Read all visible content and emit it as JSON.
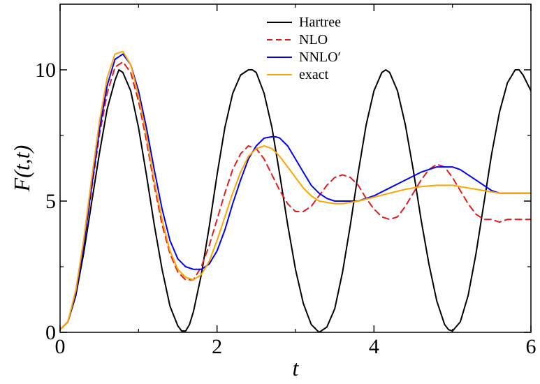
{
  "chart_data": {
    "type": "line",
    "title": "",
    "xlabel": "t",
    "ylabel": "F(t,t)",
    "xlim": [
      0,
      6
    ],
    "ylim": [
      0,
      12.5
    ],
    "xticks": [
      0,
      2,
      4,
      6
    ],
    "xtick_labels": [
      "0",
      "2",
      "4",
      "6"
    ],
    "yticks": [
      0,
      5,
      10
    ],
    "ytick_labels": [
      "0",
      "5",
      "10"
    ],
    "grid": false,
    "legend_position": "top-center",
    "series": [
      {
        "name": "Hartree",
        "color": "#000000",
        "dash": "solid",
        "x": [
          0,
          0.1,
          0.2,
          0.3,
          0.4,
          0.5,
          0.6,
          0.7,
          0.75,
          0.8,
          0.9,
          1.0,
          1.1,
          1.2,
          1.3,
          1.4,
          1.5,
          1.55,
          1.6,
          1.65,
          1.7,
          1.8,
          1.9,
          2.0,
          2.1,
          2.2,
          2.3,
          2.4,
          2.45,
          2.5,
          2.6,
          2.7,
          2.8,
          2.9,
          3.0,
          3.1,
          3.2,
          3.3,
          3.4,
          3.5,
          3.6,
          3.7,
          3.8,
          3.9,
          4.0,
          4.1,
          4.15,
          4.2,
          4.3,
          4.4,
          4.5,
          4.6,
          4.7,
          4.8,
          4.9,
          4.95,
          5.0,
          5.1,
          5.2,
          5.3,
          5.4,
          5.5,
          5.6,
          5.7,
          5.8,
          5.85,
          5.9,
          6.0
        ],
        "y": [
          0.1,
          0.4,
          1.4,
          3.0,
          4.9,
          6.8,
          8.5,
          9.6,
          10.0,
          9.9,
          9.2,
          7.8,
          6.0,
          4.1,
          2.4,
          1.0,
          0.25,
          0.05,
          0.05,
          0.3,
          0.8,
          2.2,
          4.0,
          6.0,
          7.8,
          9.1,
          9.8,
          10.0,
          10.0,
          9.9,
          9.1,
          7.8,
          6.0,
          4.1,
          2.4,
          1.1,
          0.3,
          0.0,
          0.2,
          0.9,
          2.3,
          4.1,
          6.1,
          7.9,
          9.2,
          9.9,
          10.0,
          9.9,
          9.2,
          7.9,
          6.2,
          4.3,
          2.6,
          1.2,
          0.3,
          0.1,
          0.05,
          0.4,
          1.4,
          3.0,
          4.9,
          6.8,
          8.4,
          9.5,
          10.0,
          10.0,
          9.8,
          9.2
        ]
      },
      {
        "name": "NLO",
        "color": "#e41a1c",
        "dash": "dashed",
        "x": [
          0,
          0.1,
          0.2,
          0.3,
          0.4,
          0.5,
          0.6,
          0.7,
          0.8,
          0.9,
          1.0,
          1.1,
          1.2,
          1.3,
          1.4,
          1.5,
          1.6,
          1.7,
          1.8,
          1.9,
          2.0,
          2.1,
          2.2,
          2.3,
          2.4,
          2.5,
          2.6,
          2.7,
          2.8,
          2.9,
          3.0,
          3.1,
          3.2,
          3.3,
          3.4,
          3.5,
          3.6,
          3.7,
          3.8,
          3.9,
          4.0,
          4.1,
          4.2,
          4.3,
          4.4,
          4.5,
          4.6,
          4.7,
          4.8,
          4.9,
          5.0,
          5.1,
          5.2,
          5.3,
          5.4,
          5.5,
          5.6,
          5.7,
          5.8,
          5.9,
          6.0
        ],
        "y": [
          0.1,
          0.4,
          1.5,
          3.3,
          5.4,
          7.5,
          9.1,
          10.1,
          10.3,
          9.9,
          8.8,
          7.3,
          5.6,
          4.1,
          3.0,
          2.3,
          2.0,
          2.0,
          2.5,
          3.3,
          4.3,
          5.3,
          6.2,
          6.8,
          7.1,
          7.0,
          6.6,
          6.0,
          5.4,
          4.9,
          4.6,
          4.6,
          4.8,
          5.2,
          5.6,
          5.9,
          6.0,
          5.9,
          5.6,
          5.1,
          4.7,
          4.4,
          4.3,
          4.4,
          4.8,
          5.3,
          5.8,
          6.2,
          6.4,
          6.3,
          5.9,
          5.4,
          4.9,
          4.5,
          4.3,
          4.3,
          4.2,
          4.3,
          4.3,
          4.3,
          4.3
        ]
      },
      {
        "name": "NNLO′",
        "color": "#0000ff",
        "dash": "solid",
        "x": [
          0,
          0.1,
          0.2,
          0.3,
          0.4,
          0.5,
          0.6,
          0.7,
          0.8,
          0.9,
          1.0,
          1.1,
          1.2,
          1.3,
          1.4,
          1.5,
          1.6,
          1.7,
          1.8,
          1.9,
          2.0,
          2.1,
          2.2,
          2.3,
          2.4,
          2.5,
          2.6,
          2.7,
          2.75,
          2.8,
          2.9,
          3.0,
          3.1,
          3.2,
          3.3,
          3.4,
          3.5,
          3.6,
          3.7,
          3.8,
          3.9,
          4.0,
          4.2,
          4.4,
          4.6,
          4.8,
          5.0,
          5.1,
          5.2,
          5.3,
          5.4,
          5.5,
          5.6,
          5.7,
          5.8,
          5.9,
          6.0
        ],
        "y": [
          0.1,
          0.4,
          1.5,
          3.3,
          5.5,
          7.7,
          9.4,
          10.4,
          10.6,
          10.2,
          9.2,
          7.8,
          6.2,
          4.7,
          3.5,
          2.8,
          2.5,
          2.4,
          2.4,
          2.6,
          3.1,
          3.9,
          4.9,
          5.8,
          6.6,
          7.1,
          7.4,
          7.45,
          7.45,
          7.4,
          7.1,
          6.6,
          6.1,
          5.6,
          5.3,
          5.1,
          5.0,
          5.0,
          5.0,
          5.0,
          5.1,
          5.2,
          5.5,
          5.8,
          6.1,
          6.3,
          6.3,
          6.2,
          6.0,
          5.8,
          5.6,
          5.4,
          5.3,
          5.3,
          5.3,
          5.3,
          5.3
        ]
      },
      {
        "name": "exact",
        "color": "#ffa500",
        "dash": "solid",
        "x": [
          0,
          0.1,
          0.2,
          0.3,
          0.4,
          0.5,
          0.6,
          0.7,
          0.8,
          0.9,
          1.0,
          1.1,
          1.2,
          1.3,
          1.4,
          1.5,
          1.6,
          1.7,
          1.8,
          1.9,
          2.0,
          2.1,
          2.2,
          2.3,
          2.4,
          2.5,
          2.6,
          2.7,
          2.8,
          2.9,
          3.0,
          3.1,
          3.2,
          3.3,
          3.4,
          3.5,
          3.6,
          3.7,
          3.8,
          4.0,
          4.2,
          4.4,
          4.6,
          4.8,
          5.0,
          5.2,
          5.4,
          5.6,
          5.8,
          6.0
        ],
        "y": [
          0.1,
          0.4,
          1.6,
          3.5,
          5.8,
          8.0,
          9.7,
          10.6,
          10.7,
          10.2,
          9.0,
          7.5,
          5.8,
          4.3,
          3.1,
          2.4,
          2.1,
          2.0,
          2.2,
          2.7,
          3.5,
          4.4,
          5.3,
          6.1,
          6.7,
          7.0,
          7.1,
          7.0,
          6.7,
          6.3,
          5.9,
          5.5,
          5.2,
          5.0,
          4.95,
          4.9,
          4.9,
          4.95,
          5.0,
          5.15,
          5.3,
          5.45,
          5.55,
          5.6,
          5.6,
          5.5,
          5.4,
          5.3,
          5.3,
          5.3
        ]
      }
    ]
  }
}
